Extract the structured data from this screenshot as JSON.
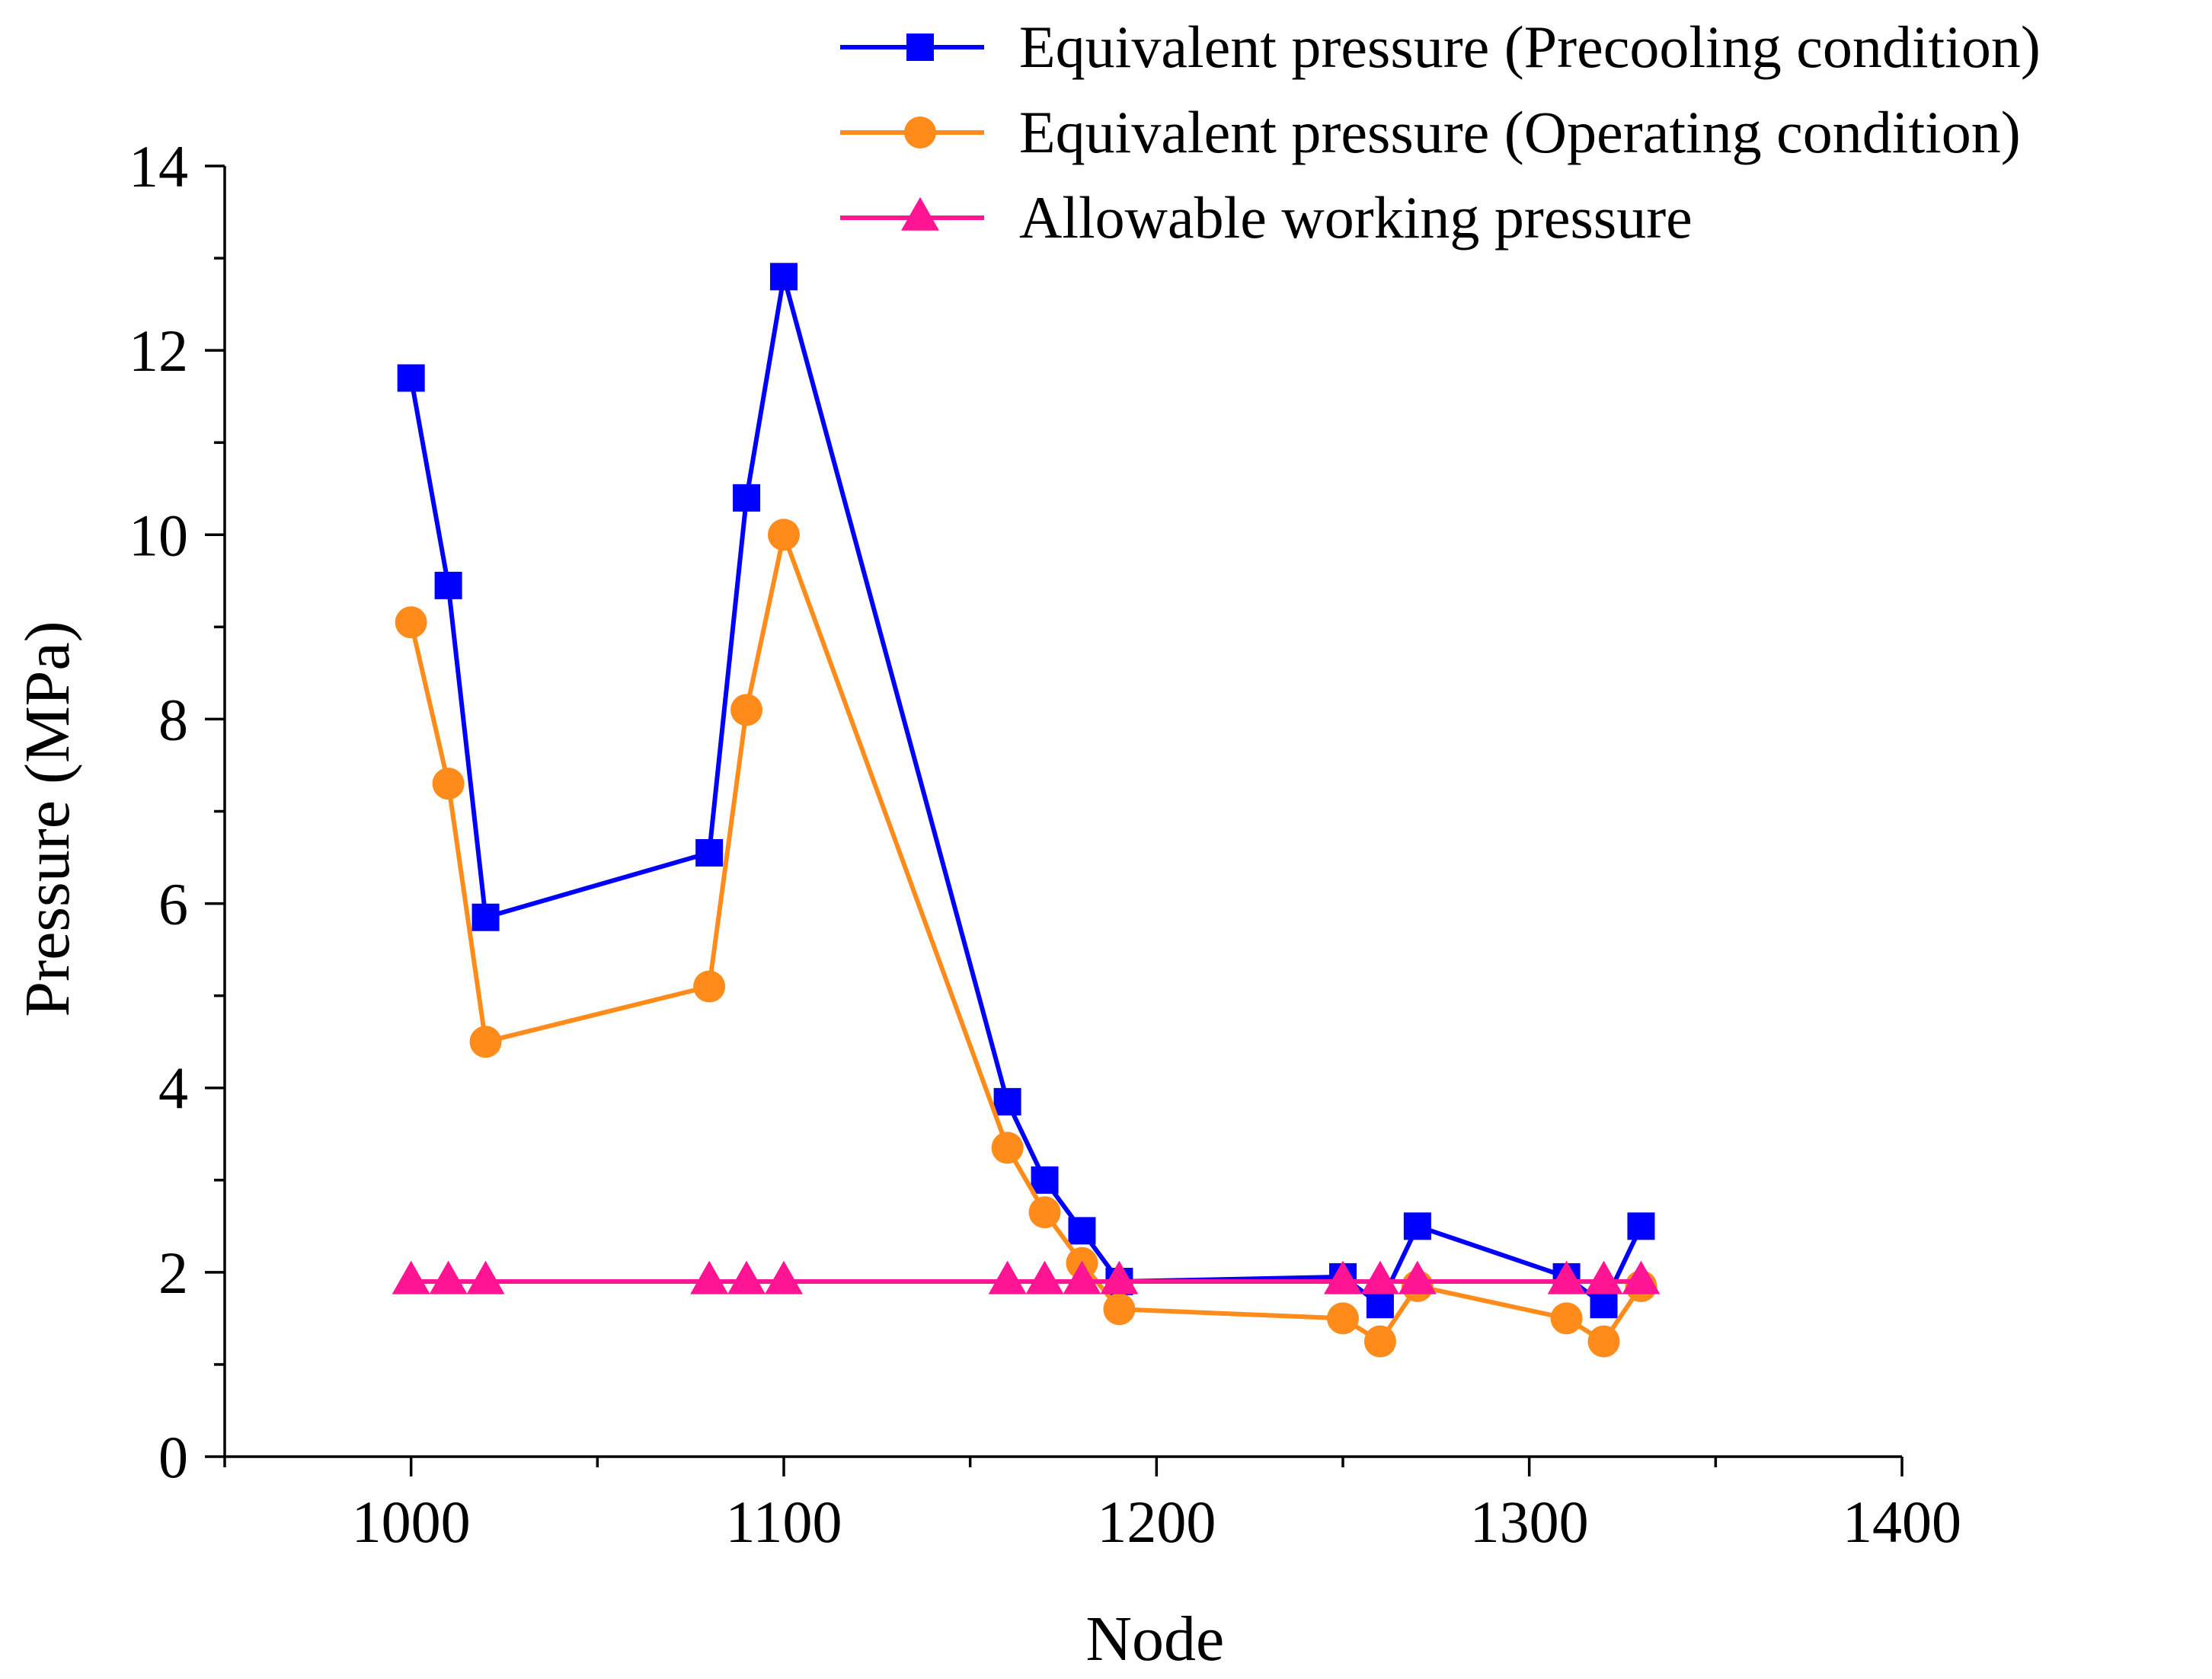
{
  "chart_data": {
    "type": "line",
    "title": "",
    "xlabel": "Node",
    "ylabel": "Pressure (MPa)",
    "xlim": [
      950,
      1400
    ],
    "ylim": [
      0,
      14
    ],
    "xticks": [
      1000,
      1100,
      1200,
      1300,
      1400
    ],
    "xtick_labels": [
      "1000",
      "1100",
      "1200",
      "1300",
      "1400"
    ],
    "yticks": [
      0,
      2,
      4,
      6,
      8,
      10,
      12,
      14
    ],
    "ytick_labels": [
      "0",
      "2",
      "4",
      "6",
      "8",
      "10",
      "12",
      "14"
    ],
    "grid": false,
    "legend_position": "top-right",
    "series": [
      {
        "name": "Equivalent pressure (Precooling condition)",
        "color": "#0000ff",
        "marker": "square",
        "x": [
          1000,
          1010,
          1020,
          1080,
          1090,
          1100,
          1160,
          1170,
          1180,
          1190,
          1250,
          1260,
          1270,
          1310,
          1320,
          1330
        ],
        "y": [
          11.7,
          9.45,
          5.85,
          6.55,
          10.4,
          12.8,
          3.85,
          3.0,
          2.45,
          1.9,
          1.95,
          1.65,
          2.5,
          1.95,
          1.65,
          2.5
        ]
      },
      {
        "name": "Equivalent pressure (Operating condition)",
        "color": "#ff8c1a",
        "marker": "circle",
        "x": [
          1000,
          1010,
          1020,
          1080,
          1090,
          1100,
          1160,
          1170,
          1180,
          1190,
          1250,
          1260,
          1270,
          1310,
          1320,
          1330
        ],
        "y": [
          9.05,
          7.3,
          4.5,
          5.1,
          8.1,
          10.0,
          3.35,
          2.65,
          2.1,
          1.6,
          1.5,
          1.25,
          1.85,
          1.5,
          1.25,
          1.85
        ]
      },
      {
        "name": "Allowable working pressure",
        "color": "#ff1493",
        "marker": "triangle",
        "x": [
          1000,
          1010,
          1020,
          1080,
          1090,
          1100,
          1160,
          1170,
          1180,
          1190,
          1250,
          1260,
          1270,
          1310,
          1320,
          1330
        ],
        "y": [
          1.9,
          1.9,
          1.9,
          1.9,
          1.9,
          1.9,
          1.9,
          1.9,
          1.9,
          1.9,
          1.9,
          1.9,
          1.9,
          1.9,
          1.9,
          1.9
        ]
      }
    ]
  }
}
